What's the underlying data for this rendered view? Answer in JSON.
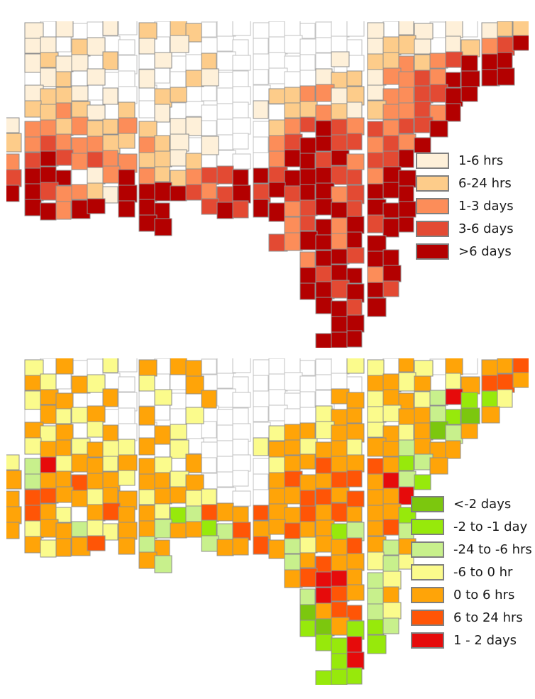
{
  "figure": {
    "background": "#ffffff",
    "legend_swatch_border": "#7f7f7f",
    "text_color": "#1a1a1a"
  },
  "maps": [
    {
      "name": "upper-choropleth-map",
      "legend": {
        "items": [
          {
            "label": "1-6 hrs",
            "color": "#fef0d9"
          },
          {
            "label": "6-24 hrs",
            "color": "#fdcc8a"
          },
          {
            "label": "1-3 days",
            "color": "#fc8d59"
          },
          {
            "label": "3-6 days",
            "color": "#e34a33"
          },
          {
            "label": ">6 days",
            "color": "#b30000"
          }
        ]
      },
      "grid": {
        "cols": 32,
        "rows": 20,
        "cell": 23,
        "stroke": "#8f8f8f",
        "stroke_nodata": "#c2c2c2",
        "classes": {
          "0": "#fef0d9",
          "1": "#fdcc8a",
          "2": "#fc8d59",
          "3": "#e34a33",
          "4": "#b30000",
          "w": "#ffffff"
        },
        "cells": [
          ".0w0ww0w1w11wwwwwwwwww0w00w0w011",
          ".00w10ww0w0wwwwwwwwwww0110w01234",
          ".0100w1ww0ww1wwwwwww0w112123444.",
          ".w01w0ww0ww10wwwwww011022324444..",
          ".0110w0ww11wwwww1122010223344...",
          ".11210w1w0wwwww0w11210122324....",
          "022121121w00wwww12343232334.....",
          "12322211210w0www2344332324......",
          "234323221101wwww244342334.......",
          "3444w0242112334434443324 4.......",
          "4432210444432343434423444.......",
          ".44244.444..343442344344 4.......",
          "........44.......2342434 4.......",
          "................,3244244........",
          "..................244344........",
          "..................434424........",
          "..................443443........",
          "...................4434.........",
          "....................44..........",
          "...................444.........."
        ]
      }
    },
    {
      "name": "lower-choropleth-map",
      "legend": {
        "items": [
          {
            "label": "<-2 days",
            "color": "#7cc70e"
          },
          {
            "label": "-2 to -1 day",
            "color": "#97e90b"
          },
          {
            "label": "-24 to -6 hrs",
            "color": "#c8f08c"
          },
          {
            "label": "-6 to 0 hr",
            "color": "#fbfb8c"
          },
          {
            "label": "0 to 6 hrs",
            "color": "#ffa408"
          },
          {
            "label": "6 to 24 hrs",
            "color": "#ff5506"
          },
          {
            "label": "1 - 2 days",
            "color": "#e60b0b"
          }
        ]
      },
      "grid": {
        "cols": 32,
        "rows": 20,
        "cell": 23,
        "stroke": "#8f8f8f",
        "stroke_nodata": "#c2c2c2",
        "classes": {
          "0": "#7cc70e",
          "1": "#97e90b",
          "2": "#c8f08c",
          "3": "#fbfb8c",
          "4": "#ffa408",
          "5": "#ff5506",
          "6": "#e60b0b",
          "w": "#ffffff"
        },
        "cells": [
          ".3w4ww3w4w44wwwwwwwww33w43w4w445",
          ".43w43ww3ww4wwwwwwwwww4434w34554",
          ".344ww4ww3ww4wwwwwww44344326113.",
          ".w4334ww4ww3wwwwwww34433442104..",
          ".434w34ww43wwwww3443443434024...",
          ".34434334w3wwww3443443442444....",
          "3263443443w4wwww34454454124.....",
          "424454434434wwww4544554621......",
          "4554434434433www445545446.......",
          "4543w4544312544544545444 1.......",
          "4344233442441254454412452.......",
          ".43445.424..244542344542 4.......",
          "........42.......2454432 3.......",
          ".................4566423........",
          "..................265424........",
          "..................045523........",
          "..................104112........",
          "...................1161.........",
          "....................16..........",
          "...................111.........."
        ]
      }
    }
  ]
}
